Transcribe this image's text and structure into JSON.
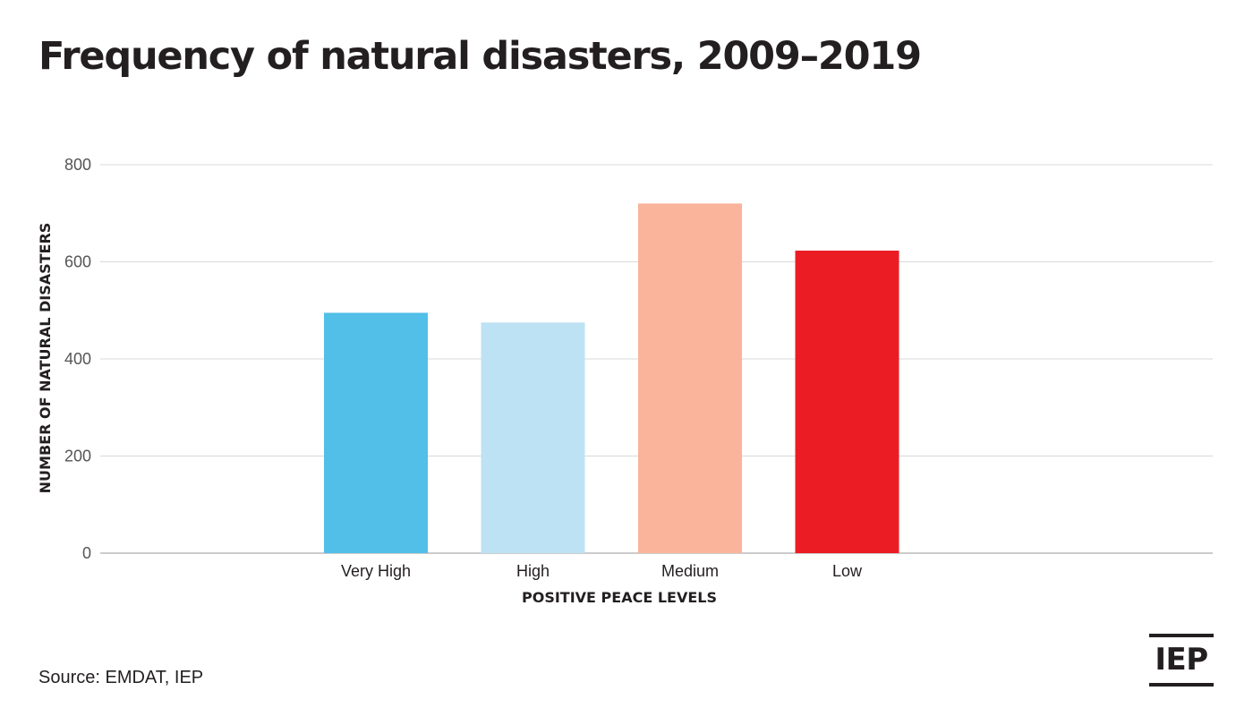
{
  "title": "Frequency of natural disasters, 2009–2019",
  "source": "Source: EMDAT, IEP",
  "logo": {
    "text": "IEP"
  },
  "chart_data": {
    "type": "bar",
    "title": "Frequency of natural disasters, 2009–2019",
    "xlabel": "POSITIVE PEACE LEVELS",
    "ylabel": "NUMBER OF NATURAL DISASTERS",
    "categories": [
      "Very High",
      "High",
      "Medium",
      "Low"
    ],
    "values": [
      495,
      475,
      720,
      623
    ],
    "colors": [
      "#51bfe8",
      "#bde2f4",
      "#f9b49b",
      "#ec1c24"
    ],
    "ylim": [
      0,
      800
    ],
    "yticks": [
      0,
      200,
      400,
      600,
      800
    ],
    "grid": true,
    "legend": "none"
  }
}
